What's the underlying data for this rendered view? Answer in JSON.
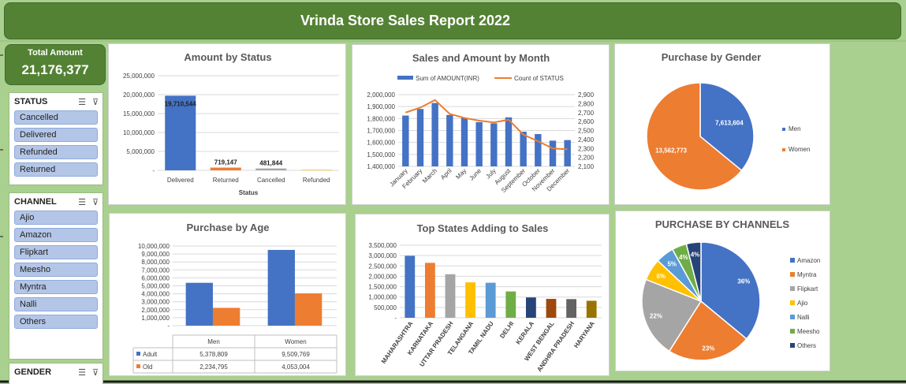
{
  "header": {
    "title": "Vrinda Store Sales Report 2022"
  },
  "kpi": {
    "label": "Total Amount",
    "value": "21,176,377"
  },
  "slicers": {
    "status": {
      "title": "STATUS",
      "items": [
        "Cancelled",
        "Delivered",
        "Refunded",
        "Returned"
      ]
    },
    "channel": {
      "title": "CHANNEL",
      "items": [
        "Ajio",
        "Amazon",
        "Flipkart",
        "Meesho",
        "Myntra",
        "Nalli",
        "Others"
      ]
    },
    "gender": {
      "title": "GENDER"
    }
  },
  "chart_data": [
    {
      "id": "status",
      "type": "bar",
      "title": "Amount by Status",
      "xlabel": "Status",
      "categories": [
        "Delivered",
        "Returned",
        "Cancelled",
        "Refunded"
      ],
      "values": [
        19710544,
        719147,
        481844,
        150000
      ],
      "data_labels": [
        "19,710,544",
        "719,147",
        "481,844",
        ""
      ],
      "colors": [
        "#4472c4",
        "#ed7d31",
        "#a5a5a5",
        "#ffc000"
      ],
      "ylim": [
        0,
        25000000
      ],
      "yticks": [
        0,
        5000000,
        10000000,
        15000000,
        20000000,
        25000000
      ],
      "ytick_labels": [
        "-",
        "5,000,000",
        "10,000,000",
        "15,000,000",
        "20,000,000",
        "25,000,000"
      ]
    },
    {
      "id": "month",
      "type": "bar+line",
      "title": "Sales and Amount by Month",
      "categories": [
        "January",
        "February",
        "March",
        "April",
        "May",
        "June",
        "July",
        "August",
        "September",
        "October",
        "November",
        "December"
      ],
      "series": [
        {
          "name": "Sum of AMOUNT(INR)",
          "type": "bar",
          "axis": "left",
          "color": "#4472c4",
          "values": [
            1825000,
            1880000,
            1930000,
            1830000,
            1805000,
            1770000,
            1760000,
            1810000,
            1690000,
            1670000,
            1615000,
            1620000
          ]
        },
        {
          "name": "Count of STATUS",
          "type": "line",
          "axis": "right",
          "color": "#ed7d31",
          "values": [
            2700,
            2755,
            2840,
            2685,
            2640,
            2610,
            2590,
            2620,
            2455,
            2380,
            2300,
            2290
          ]
        }
      ],
      "ylim_left": [
        1400000,
        2000000
      ],
      "yticks_left": [
        1400000,
        1500000,
        1600000,
        1700000,
        1800000,
        1900000,
        2000000
      ],
      "ytick_labels_left": [
        "1,400,000",
        "1,500,000",
        "1,600,000",
        "1,700,000",
        "1,800,000",
        "1,900,000",
        "2,000,000"
      ],
      "ylim_right": [
        2100,
        2900
      ],
      "yticks_right": [
        2100,
        2200,
        2300,
        2400,
        2500,
        2600,
        2700,
        2800,
        2900
      ],
      "ytick_labels_right": [
        "2,100",
        "2,200",
        "2,300",
        "2,400",
        "2,500",
        "2,600",
        "2,700",
        "2,800",
        "2,900"
      ],
      "legend": "top"
    },
    {
      "id": "gender",
      "type": "pie",
      "title": "Purchase by Gender",
      "categories": [
        "Men",
        "Women"
      ],
      "values": [
        7613604,
        13562773
      ],
      "data_labels": [
        "7,613,604",
        "13,562,773"
      ],
      "colors": [
        "#4472c4",
        "#ed7d31"
      ],
      "legend": "right"
    },
    {
      "id": "age",
      "type": "bar",
      "title": "Purchase by Age",
      "categories": [
        "Men",
        "Women"
      ],
      "series": [
        {
          "name": "Adult",
          "color": "#4472c4",
          "values": [
            5378809,
            9509769
          ],
          "labels": [
            "5,378,809",
            "9,509,769"
          ]
        },
        {
          "name": "Old",
          "color": "#ed7d31",
          "values": [
            2234795,
            4053004
          ],
          "labels": [
            "2,234,795",
            "4,053,004"
          ]
        }
      ],
      "ylim": [
        0,
        10000000
      ],
      "yticks": [
        0,
        1000000,
        2000000,
        3000000,
        4000000,
        5000000,
        6000000,
        7000000,
        8000000,
        9000000,
        10000000
      ],
      "ytick_labels": [
        "-",
        "1,000,000",
        "2,000,000",
        "3,000,000",
        "4,000,000",
        "5,000,000",
        "6,000,000",
        "7,000,000",
        "8,000,000",
        "9,000,000",
        "10,000,000"
      ],
      "data_table": true
    },
    {
      "id": "states",
      "type": "bar",
      "title": "Top States Adding to Sales",
      "categories": [
        "MAHARASHTRA",
        "KARNATAKA",
        "UTTAR PRADESH",
        "TELANGANA",
        "TAMIL NADU",
        "DELHI",
        "KERALA",
        "WEST BENGAL",
        "ANDHRA PRADESH",
        "HARYANA"
      ],
      "values": [
        2990000,
        2650000,
        2100000,
        1710000,
        1690000,
        1270000,
        980000,
        910000,
        900000,
        820000
      ],
      "colors": [
        "#4472c4",
        "#ed7d31",
        "#a5a5a5",
        "#ffc000",
        "#5b9bd5",
        "#70ad47",
        "#264478",
        "#9e480e",
        "#636363",
        "#997300"
      ],
      "ylim": [
        0,
        3500000
      ],
      "yticks": [
        0,
        500000,
        1000000,
        1500000,
        2000000,
        2500000,
        3000000,
        3500000
      ],
      "ytick_labels": [
        "-",
        "500,000",
        "1,000,000",
        "1,500,000",
        "2,000,000",
        "2,500,000",
        "3,000,000",
        "3,500,000"
      ]
    },
    {
      "id": "channels",
      "type": "pie",
      "title": "PURCHASE BY CHANNELS",
      "categories": [
        "Amazon",
        "Myntra",
        "Flipkart",
        "Ajio",
        "Nalli",
        "Meesho",
        "Others"
      ],
      "values": [
        36,
        23,
        22,
        6,
        5,
        4,
        4
      ],
      "data_labels": [
        "36%",
        "23%",
        "22%",
        "6%",
        "5%",
        "4%",
        "4%"
      ],
      "colors": [
        "#4472c4",
        "#ed7d31",
        "#a5a5a5",
        "#ffc000",
        "#5b9bd5",
        "#70ad47",
        "#264478"
      ],
      "legend": "right"
    }
  ]
}
